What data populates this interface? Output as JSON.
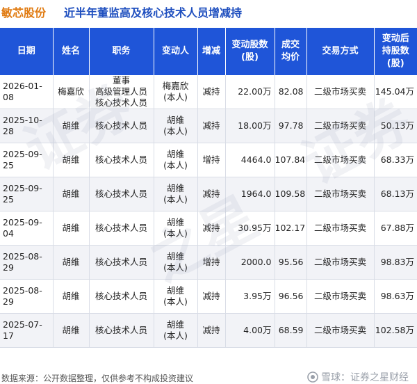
{
  "title": {
    "stock": "敏芯股份",
    "main": "近半年董监高及核心技术人员增减持"
  },
  "table": {
    "headers": [
      [
        "日期"
      ],
      [
        "姓名"
      ],
      [
        "职务"
      ],
      [
        "变动人"
      ],
      [
        "增减"
      ],
      [
        "变动股数",
        "(股)"
      ],
      [
        "成交",
        "均价"
      ],
      [
        "交易方式"
      ],
      [
        "变动后",
        "持股数",
        "(股)"
      ]
    ],
    "rows": [
      {
        "date": "2026-01-08",
        "name": "梅嘉欣",
        "position": [
          "董事",
          "高级管理人员",
          "核心技术人员"
        ],
        "person": [
          "梅嘉欣",
          "(本人)"
        ],
        "direction": "减持",
        "change": "22.00万",
        "price": "82.08",
        "method": "二级市场买卖",
        "after": "145.04万"
      },
      {
        "date": "2025-10-28",
        "name": "胡维",
        "position": [
          "核心技术人员"
        ],
        "person": [
          "胡维",
          "(本人)"
        ],
        "direction": "减持",
        "change": "18.00万",
        "price": "97.78",
        "method": "二级市场买卖",
        "after": "50.13万"
      },
      {
        "date": "2025-09-25",
        "name": "胡维",
        "position": [
          "核心技术人员"
        ],
        "person": [
          "胡维",
          "(本人)"
        ],
        "direction": "增持",
        "change": "4464.0",
        "price": "107.84",
        "method": "二级市场买卖",
        "after": "68.33万"
      },
      {
        "date": "2025-09-25",
        "name": "胡维",
        "position": [
          "核心技术人员"
        ],
        "person": [
          "胡维",
          "(本人)"
        ],
        "direction": "减持",
        "change": "1964.0",
        "price": "109.58",
        "method": "二级市场买卖",
        "after": "68.13万"
      },
      {
        "date": "2025-09-04",
        "name": "胡维",
        "position": [
          "核心技术人员"
        ],
        "person": [
          "胡维",
          "(本人)"
        ],
        "direction": "减持",
        "change": "30.95万",
        "price": "102.17",
        "method": "二级市场买卖",
        "after": "67.88万"
      },
      {
        "date": "2025-08-29",
        "name": "胡维",
        "position": [
          "核心技术人员"
        ],
        "person": [
          "胡维",
          "(本人)"
        ],
        "direction": "增持",
        "change": "2000.0",
        "price": "95.56",
        "method": "二级市场买卖",
        "after": "98.83万"
      },
      {
        "date": "2025-08-29",
        "name": "胡维",
        "position": [
          "核心技术人员"
        ],
        "person": [
          "胡维",
          "(本人)"
        ],
        "direction": "减持",
        "change": "3.95万",
        "price": "96.56",
        "method": "二级市场买卖",
        "after": "98.63万"
      },
      {
        "date": "2025-07-17",
        "name": "胡维",
        "position": [
          "核心技术人员"
        ],
        "person": [
          "胡维",
          "(本人)"
        ],
        "direction": "减持",
        "change": "4.00万",
        "price": "68.59",
        "method": "二级市场买卖",
        "after": "102.58万"
      }
    ]
  },
  "footer": {
    "source": "数据来源：公开数据整理，仅供参考不构成投资建议",
    "brand": "雪球：证券之星财经"
  },
  "colors": {
    "header_bg": "#1f55d8",
    "title_stock": "#e07a10",
    "title_main": "#1f4fbf",
    "decrease": "#1e9a3c",
    "increase": "#d42a2a"
  }
}
